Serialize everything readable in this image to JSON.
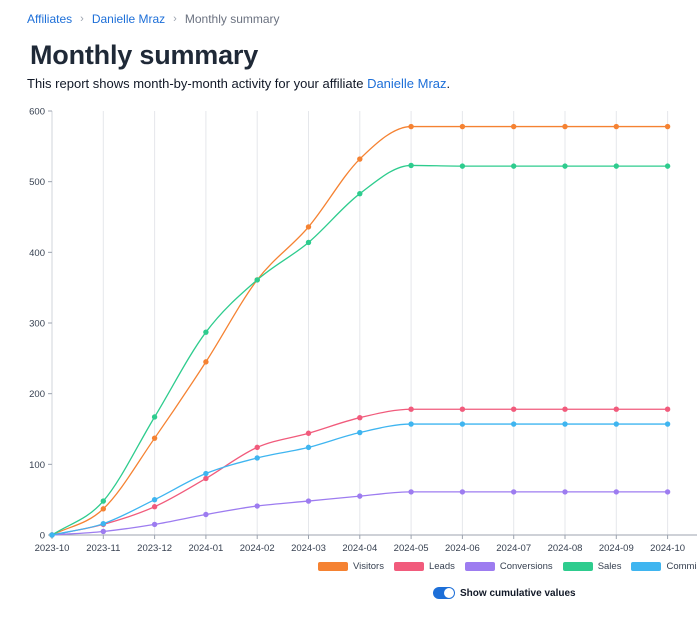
{
  "breadcrumb": {
    "items": [
      "Affiliates",
      "Danielle Mraz"
    ],
    "current": "Monthly summary"
  },
  "page": {
    "title": "Monthly summary",
    "intro_prefix": "This report shows month-by-month activity for your affiliate ",
    "intro_link": "Danielle Mraz",
    "intro_suffix": "."
  },
  "chart_data": {
    "type": "line",
    "categories": [
      "2023-10",
      "2023-11",
      "2023-12",
      "2024-01",
      "2024-02",
      "2024-03",
      "2024-04",
      "2024-05",
      "2024-06",
      "2024-07",
      "2024-08",
      "2024-09",
      "2024-10"
    ],
    "ylim": [
      0,
      600
    ],
    "yticks": [
      "0",
      "100",
      "200",
      "300",
      "400",
      "500",
      "600"
    ],
    "grid": "vertical",
    "legend_position": "bottom-right",
    "series": [
      {
        "name": "Visitors",
        "color": "#f58232",
        "values": [
          0,
          37,
          137,
          245,
          361,
          436,
          532,
          578,
          578,
          578,
          578,
          578,
          578
        ]
      },
      {
        "name": "Leads",
        "color": "#f15b7c",
        "values": [
          0,
          15,
          40,
          80,
          124,
          144,
          166,
          178,
          178,
          178,
          178,
          178,
          178
        ]
      },
      {
        "name": "Conversions",
        "color": "#9d7cf0",
        "values": [
          0,
          5,
          15,
          29,
          41,
          48,
          55,
          61,
          61,
          61,
          61,
          61,
          61
        ]
      },
      {
        "name": "Sales",
        "color": "#2ecc8e",
        "values": [
          0,
          48,
          167,
          287,
          361,
          414,
          483,
          523,
          522,
          522,
          522,
          522,
          522
        ]
      },
      {
        "name": "Commissions",
        "color": "#3fb5f0",
        "values": [
          0,
          16,
          50,
          87,
          109,
          124,
          145,
          157,
          157,
          157,
          157,
          157,
          157
        ]
      }
    ]
  },
  "toggle": {
    "label": "Show cumulative values",
    "checked": true
  }
}
